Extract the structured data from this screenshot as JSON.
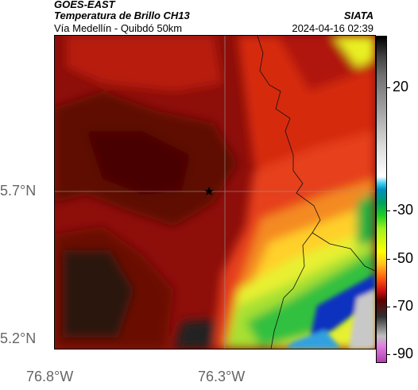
{
  "header": {
    "satellite": "GOES-EAST",
    "product": "Temperatura de Brillo CH13",
    "region": "Vía Medellín - Quibdó 50km",
    "organization": "SIATA",
    "timestamp": "2024-04-16 02:39"
  },
  "map": {
    "latitude_labels": [
      "5.7°N",
      "5.2°N"
    ],
    "longitude_labels": [
      "76.8°W",
      "76.3°W"
    ],
    "marker_icon": "star-icon"
  },
  "colorbar": {
    "tick_labels": [
      "20",
      "-30",
      "-50",
      "-70",
      "-90"
    ]
  }
}
